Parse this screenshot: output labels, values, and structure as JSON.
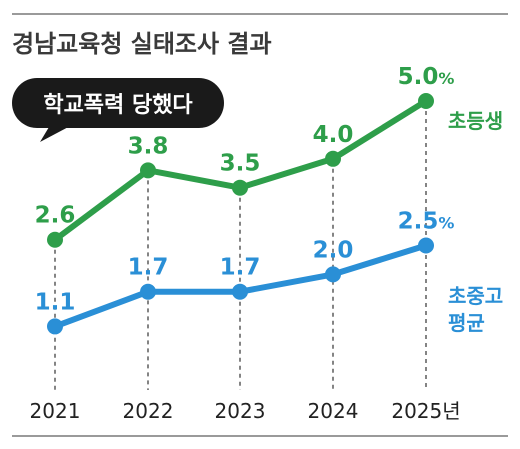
{
  "header": {
    "title": "경남교육청 실태조사 결과",
    "bubble_label": "학교폭력 당했다"
  },
  "colors": {
    "green": "#2e9e4a",
    "blue": "#2a8fd6",
    "bubble": "#1a1a1a",
    "rule": "#9a9a9a"
  },
  "chart_data": {
    "type": "line",
    "x": [
      "2021",
      "2022",
      "2023",
      "2024",
      "2025"
    ],
    "x_unit_suffix": "년",
    "ylim": [
      0,
      5.5
    ],
    "grid": false,
    "series": [
      {
        "name": "초등생",
        "values": [
          2.6,
          3.8,
          3.5,
          4.0,
          5.0
        ],
        "color": "#2e9e4a"
      },
      {
        "name": "초중고 평균",
        "name_lines": [
          "초중고",
          "평균"
        ],
        "values": [
          1.1,
          1.7,
          1.7,
          2.0,
          2.5
        ],
        "color": "#2a8fd6"
      }
    ],
    "last_value_suffix": "%"
  }
}
